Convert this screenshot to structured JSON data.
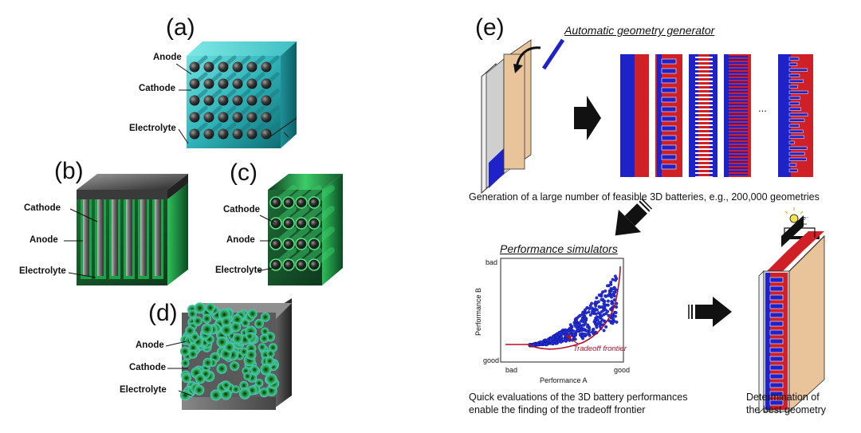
{
  "left": {
    "panel_a": {
      "letter": "(a)",
      "labels": [
        "Anode",
        "Cathode",
        "Electrolyte"
      ]
    },
    "panel_b": {
      "letter": "(b)",
      "labels": [
        "Cathode",
        "Anode",
        "Electrolyte"
      ]
    },
    "panel_c": {
      "letter": "(c)",
      "labels": [
        "Cathode",
        "Anode",
        "Electrolyte"
      ]
    },
    "panel_d": {
      "letter": "(d)",
      "labels": [
        "Anode",
        "Cathode",
        "Electrolyte"
      ]
    }
  },
  "right": {
    "letter": "(e)",
    "generator_title": "Automatic geometry generator",
    "ellipsis": "...",
    "generation_caption": "Generation of a large number of feasible 3D batteries, e.g., 200,000 geometries",
    "simulators_title": "Performance simulators",
    "plot": {
      "ylabel": "Performance B",
      "xlabel": "Performance A",
      "y_top": "bad",
      "y_bottom": "good",
      "x_left": "bad",
      "x_right": "good",
      "frontier_label": "Tradeoff frontier"
    },
    "quick_caption_1": "Quick evaluations of the 3D battery performances",
    "quick_caption_2": "enable the finding of the tradeoff frontier",
    "best_caption_1": "Determination of",
    "best_caption_2": "the best geometry",
    "bulb_label": "e⁻"
  },
  "colors": {
    "cathode_red": "#cf2027",
    "anode_blue": "#1f22c7",
    "panel_a_teal": "#2fb3b8",
    "panel_bc_green": "#22a24a",
    "electrode_tan": "#e9c49b",
    "frontier_red": "#b0102a"
  }
}
